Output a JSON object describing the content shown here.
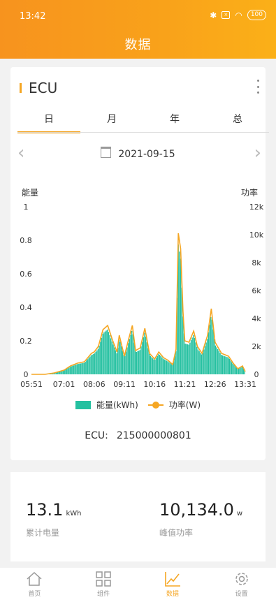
{
  "status_bar": {
    "time": "13:42",
    "battery": "100"
  },
  "header": {
    "title": "数据"
  },
  "card": {
    "device": "ECU",
    "tabs": [
      "日",
      "月",
      "年",
      "总"
    ],
    "active_tab": "日",
    "date": "2021-09-15",
    "ecu_label": "ECU:",
    "ecu_id": "215000000801"
  },
  "chart_data": {
    "type": "bar",
    "left_axis_label": "能量",
    "right_axis_label": "功率",
    "left_ylim": [
      0,
      1
    ],
    "right_ylim": [
      0,
      12000
    ],
    "left_ticks": [
      "0",
      "0.2",
      "0.4",
      "0.6",
      "0.8",
      "1"
    ],
    "right_ticks": [
      "0",
      "2k",
      "4k",
      "6k",
      "8k",
      "10k",
      "12k"
    ],
    "x_ticks": [
      "05:51",
      "07:01",
      "08:06",
      "09:11",
      "10:16",
      "11:21",
      "12:26",
      "13:31"
    ],
    "x_time_range": [
      "05:51",
      "13:31"
    ],
    "series": [
      {
        "name": "能量(kWh)",
        "color": "#24c0a0"
      },
      {
        "name": "功率(W)",
        "color": "#f5a623"
      }
    ],
    "power_points": [
      [
        "05:51",
        0
      ],
      [
        "06:20",
        0
      ],
      [
        "06:40",
        100
      ],
      [
        "07:01",
        300
      ],
      [
        "07:15",
        600
      ],
      [
        "07:30",
        800
      ],
      [
        "07:45",
        900
      ],
      [
        "08:00",
        1500
      ],
      [
        "08:06",
        1600
      ],
      [
        "08:15",
        2000
      ],
      [
        "08:25",
        3200
      ],
      [
        "08:35",
        3500
      ],
      [
        "08:45",
        2500
      ],
      [
        "08:55",
        1600
      ],
      [
        "09:00",
        2800
      ],
      [
        "09:11",
        1300
      ],
      [
        "09:20",
        2500
      ],
      [
        "09:28",
        3500
      ],
      [
        "09:35",
        1700
      ],
      [
        "09:45",
        1900
      ],
      [
        "09:55",
        3300
      ],
      [
        "10:05",
        1500
      ],
      [
        "10:16",
        1100
      ],
      [
        "10:25",
        1600
      ],
      [
        "10:35",
        1200
      ],
      [
        "10:45",
        1000
      ],
      [
        "10:55",
        700
      ],
      [
        "11:02",
        1800
      ],
      [
        "11:07",
        10100
      ],
      [
        "11:12",
        9000
      ],
      [
        "11:17",
        4500
      ],
      [
        "11:21",
        2400
      ],
      [
        "11:30",
        2300
      ],
      [
        "11:40",
        3100
      ],
      [
        "11:48",
        2000
      ],
      [
        "11:58",
        1500
      ],
      [
        "12:10",
        2800
      ],
      [
        "12:18",
        4700
      ],
      [
        "12:26",
        2300
      ],
      [
        "12:40",
        1500
      ],
      [
        "12:55",
        1300
      ],
      [
        "13:05",
        800
      ],
      [
        "13:15",
        400
      ],
      [
        "13:25",
        600
      ],
      [
        "13:31",
        200
      ]
    ]
  },
  "summary": {
    "energy_value": "13.1",
    "energy_unit": "kWh",
    "energy_label": "累计电量",
    "power_value": "10,134.0",
    "power_unit": "w",
    "power_label": "峰值功率"
  },
  "nav": {
    "home": "首页",
    "components": "组件",
    "data": "数据",
    "settings": "设置"
  }
}
